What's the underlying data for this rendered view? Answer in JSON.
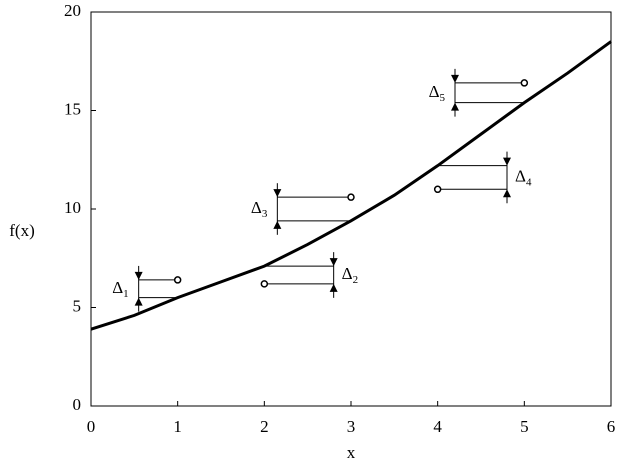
{
  "chart_data": {
    "type": "line",
    "xlabel": "x",
    "ylabel": "f(x)",
    "xlim": [
      0,
      6
    ],
    "ylim": [
      0,
      20
    ],
    "xticks": [
      0,
      1,
      2,
      3,
      4,
      5,
      6
    ],
    "yticks": [
      0,
      5,
      10,
      15,
      20
    ],
    "grid": false,
    "series": [
      {
        "color": "#000000",
        "x": [
          0,
          0.5,
          1,
          1.5,
          2,
          2.5,
          3,
          3.5,
          4,
          4.5,
          5,
          5.5,
          6
        ],
        "values": [
          3.9,
          4.6,
          5.5,
          6.3,
          7.1,
          8.2,
          9.4,
          10.7,
          12.2,
          13.8,
          15.4,
          16.9,
          18.5
        ]
      }
    ],
    "points": {
      "x": [
        1,
        2,
        3,
        4,
        5
      ],
      "values": [
        6.4,
        6.2,
        10.6,
        11.0,
        16.4
      ],
      "fit": [
        5.5,
        7.1,
        9.4,
        12.2,
        15.4
      ]
    },
    "annotations": [
      {
        "symbol": "Δ",
        "index": "1"
      },
      {
        "symbol": "Δ",
        "index": "2"
      },
      {
        "symbol": "Δ",
        "index": "3"
      },
      {
        "symbol": "Δ",
        "index": "4"
      },
      {
        "symbol": "Δ",
        "index": "5"
      }
    ]
  }
}
